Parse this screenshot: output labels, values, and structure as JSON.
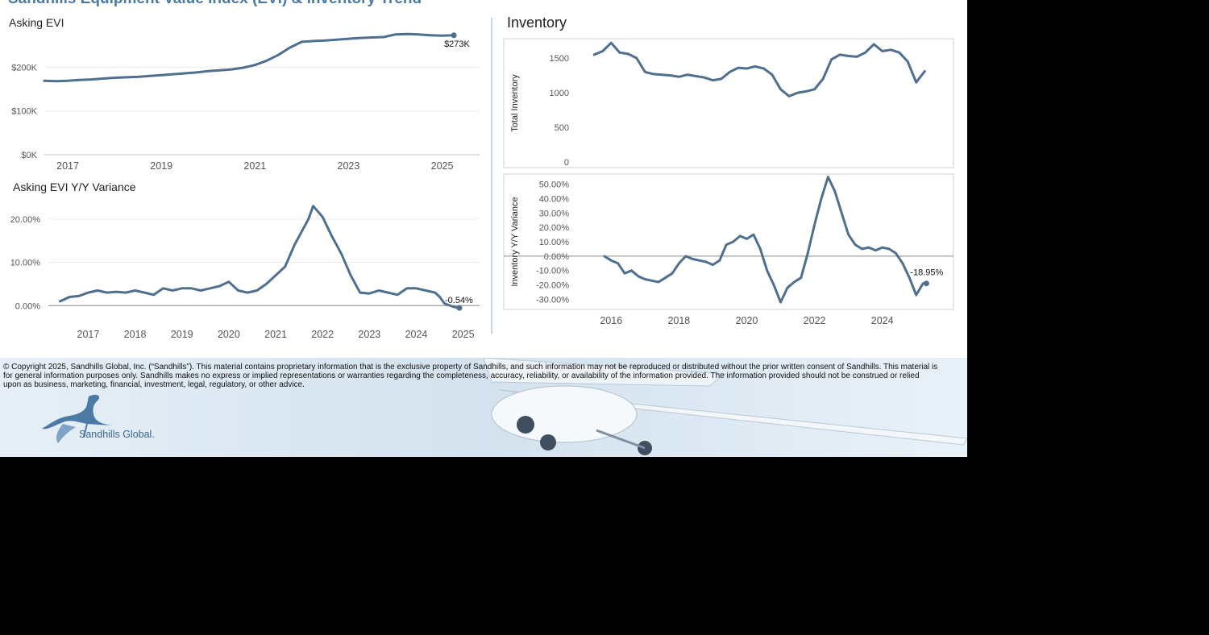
{
  "header": {
    "title": "Sandhills Equipment Value Index (EVI) & Inventory Trend"
  },
  "panels": {
    "asking_evi_title": "Asking EVI",
    "asking_evi_yy_title": "Asking EVI Y/Y Variance",
    "inventory_title": "Inventory"
  },
  "footer": {
    "copyright": "© Copyright 2025, Sandhills Global, Inc. (“Sandhills”). This material contains proprietary information that is the exclusive property of Sandhills, and such information may not be reproduced or distributed without the prior written consent of Sandhills. This material is for general information purposes only. Sandhills makes no express or implied representations or warranties regarding the completeness, accuracy, reliability, or availability of the information provided. The information provided should not be construed or relied upon as business, marketing, financial, investment, legal, regulatory, or other advice.",
    "logo_text": "Sandhills Global."
  },
  "colors": {
    "title": "#4a7aa6",
    "series": "#4e6f8f",
    "background": "#ffffff",
    "page": "#000000"
  },
  "icons": {
    "logo": "crane-bird-logo",
    "background_image": "airplane-photo"
  },
  "chart_data": [
    {
      "id": "asking-evi",
      "type": "line",
      "title": "Asking EVI",
      "x_ticks": [
        2017,
        2019,
        2021,
        2023,
        2025
      ],
      "xlim": [
        2016.5,
        2025.8
      ],
      "y_ticks": [
        0,
        100000,
        200000
      ],
      "y_tick_labels": [
        "$0K",
        "$100K",
        "$200K"
      ],
      "ylim": [
        0,
        280000
      ],
      "end_label": "$273K",
      "grid": true,
      "x": [
        2016.5,
        2016.75,
        2017,
        2017.25,
        2017.5,
        2017.75,
        2018,
        2018.25,
        2018.5,
        2018.75,
        2019,
        2019.25,
        2019.5,
        2019.75,
        2020,
        2020.25,
        2020.5,
        2020.75,
        2021,
        2021.25,
        2021.5,
        2021.75,
        2022,
        2022.25,
        2022.5,
        2022.75,
        2023,
        2023.25,
        2023.5,
        2023.75,
        2024,
        2024.25,
        2024.5,
        2024.75,
        2025,
        2025.25
      ],
      "y": [
        169000,
        168000,
        169000,
        171000,
        172000,
        174000,
        176000,
        177000,
        178000,
        180000,
        182000,
        184000,
        186000,
        188000,
        191000,
        193000,
        195000,
        199000,
        205000,
        215000,
        228000,
        245000,
        258000,
        260000,
        261000,
        263000,
        265000,
        267000,
        268000,
        269000,
        275000,
        276000,
        275000,
        273000,
        272000,
        273000
      ]
    },
    {
      "id": "asking-evi-yy",
      "type": "line",
      "title": "Asking EVI Y/Y Variance",
      "x_ticks": [
        2017,
        2018,
        2019,
        2020,
        2021,
        2022,
        2023,
        2024,
        2025
      ],
      "xlim": [
        2016.15,
        2025.35
      ],
      "y_ticks": [
        0,
        0.1,
        0.2
      ],
      "y_tick_labels": [
        "0.00%",
        "10.00%",
        "20.00%"
      ],
      "ylim": [
        -0.02,
        0.25
      ],
      "end_label": "-0.54%",
      "grid": true,
      "x": [
        2016.4,
        2016.6,
        2016.8,
        2017,
        2017.2,
        2017.4,
        2017.6,
        2017.8,
        2018,
        2018.2,
        2018.4,
        2018.6,
        2018.8,
        2019,
        2019.2,
        2019.4,
        2019.6,
        2019.8,
        2020,
        2020.2,
        2020.4,
        2020.6,
        2020.8,
        2021,
        2021.2,
        2021.4,
        2021.6,
        2021.7,
        2021.8,
        2022,
        2022.2,
        2022.4,
        2022.6,
        2022.8,
        2023,
        2023.2,
        2023.4,
        2023.6,
        2023.8,
        2024,
        2024.2,
        2024.4,
        2024.5,
        2024.6,
        2024.8,
        2024.92
      ],
      "y": [
        0.01,
        0.02,
        0.022,
        0.03,
        0.035,
        0.03,
        0.032,
        0.03,
        0.035,
        0.03,
        0.025,
        0.04,
        0.035,
        0.04,
        0.04,
        0.035,
        0.04,
        0.045,
        0.055,
        0.035,
        0.03,
        0.035,
        0.05,
        0.07,
        0.09,
        0.14,
        0.18,
        0.2,
        0.23,
        0.205,
        0.16,
        0.12,
        0.07,
        0.03,
        0.028,
        0.035,
        0.03,
        0.025,
        0.04,
        0.04,
        0.035,
        0.03,
        0.02,
        0.005,
        -0.003,
        -0.0054
      ]
    },
    {
      "id": "total-inventory",
      "type": "line",
      "ylabel": "Total Inventory",
      "y_ticks": [
        0,
        500,
        1000,
        1500
      ],
      "ylim": [
        -80,
        1780
      ],
      "xlim": [
        2014.9,
        2026.1
      ],
      "grid": false,
      "x": [
        2015.5,
        2015.75,
        2016,
        2016.25,
        2016.5,
        2016.75,
        2017,
        2017.25,
        2017.5,
        2017.75,
        2018,
        2018.25,
        2018.5,
        2018.75,
        2019,
        2019.25,
        2019.5,
        2019.75,
        2020,
        2020.25,
        2020.5,
        2020.75,
        2021,
        2021.25,
        2021.5,
        2021.75,
        2022,
        2022.25,
        2022.5,
        2022.75,
        2023,
        2023.25,
        2023.5,
        2023.75,
        2024,
        2024.25,
        2024.5,
        2024.75,
        2025,
        2025.25
      ],
      "y": [
        1550,
        1600,
        1720,
        1580,
        1560,
        1500,
        1300,
        1270,
        1260,
        1250,
        1230,
        1260,
        1240,
        1220,
        1180,
        1200,
        1300,
        1360,
        1350,
        1380,
        1350,
        1260,
        1050,
        950,
        1000,
        1020,
        1050,
        1200,
        1480,
        1550,
        1530,
        1520,
        1580,
        1700,
        1600,
        1620,
        1580,
        1450,
        1150,
        1310
      ]
    },
    {
      "id": "inventory-yy",
      "type": "line",
      "ylabel": "Inventory Y/Y Variance",
      "x_ticks": [
        2016,
        2018,
        2020,
        2022,
        2024
      ],
      "xlim": [
        2014.9,
        2026.1
      ],
      "y_ticks": [
        -0.3,
        -0.2,
        -0.1,
        0,
        0.1,
        0.2,
        0.3,
        0.4,
        0.5
      ],
      "y_tick_labels": [
        "-30.00%",
        "-20.00%",
        "-10.00%",
        "0.00%",
        "10.00%",
        "20.00%",
        "30.00%",
        "40.00%",
        "50.00%"
      ],
      "ylim": [
        -0.37,
        0.57
      ],
      "end_label": "-18.95%",
      "grid": false,
      "x": [
        2015.8,
        2016,
        2016.2,
        2016.4,
        2016.6,
        2016.8,
        2017,
        2017.2,
        2017.4,
        2017.6,
        2017.8,
        2018,
        2018.2,
        2018.4,
        2018.6,
        2018.8,
        2019,
        2019.2,
        2019.4,
        2019.6,
        2019.8,
        2020,
        2020.2,
        2020.4,
        2020.6,
        2020.8,
        2021,
        2021.2,
        2021.4,
        2021.6,
        2021.8,
        2022,
        2022.2,
        2022.4,
        2022.6,
        2022.8,
        2023,
        2023.2,
        2023.4,
        2023.6,
        2023.8,
        2024,
        2024.2,
        2024.4,
        2024.6,
        2024.8,
        2025,
        2025.2,
        2025.3
      ],
      "y": [
        0,
        -0.03,
        -0.05,
        -0.12,
        -0.1,
        -0.14,
        -0.16,
        -0.17,
        -0.18,
        -0.15,
        -0.12,
        -0.05,
        0,
        -0.02,
        -0.03,
        -0.04,
        -0.06,
        -0.03,
        0.08,
        0.1,
        0.14,
        0.12,
        0.15,
        0.05,
        -0.1,
        -0.2,
        -0.32,
        -0.22,
        -0.18,
        -0.15,
        0.02,
        0.22,
        0.4,
        0.55,
        0.45,
        0.3,
        0.15,
        0.08,
        0.05,
        0.06,
        0.04,
        0.06,
        0.05,
        0.02,
        -0.05,
        -0.15,
        -0.27,
        -0.19,
        -0.1895
      ]
    }
  ]
}
